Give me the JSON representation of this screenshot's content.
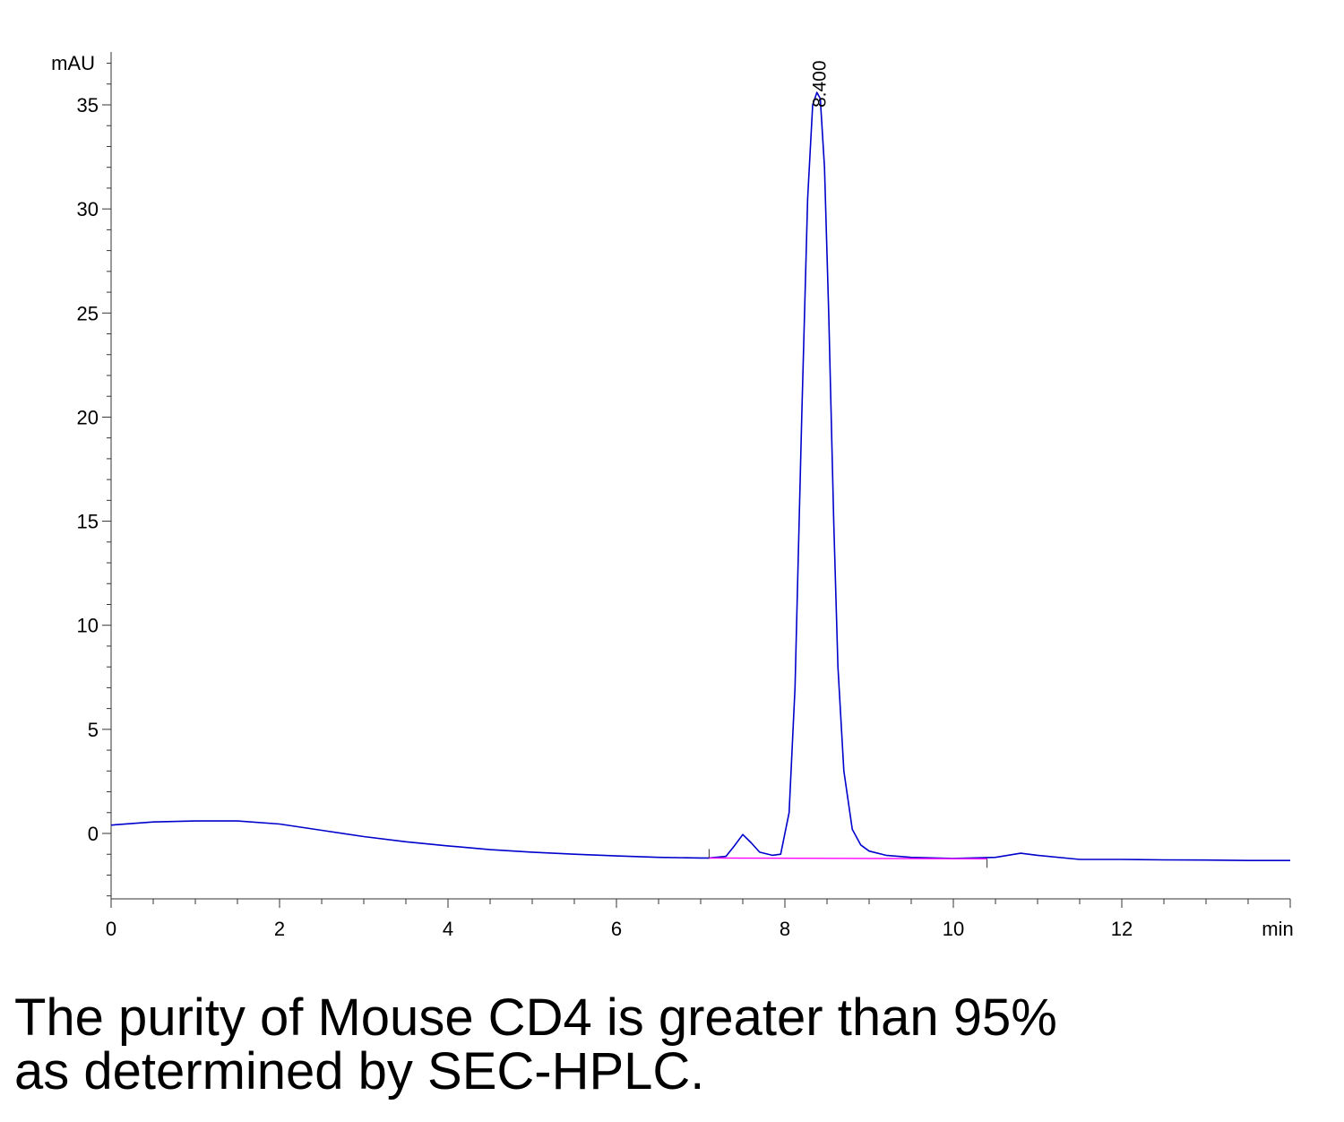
{
  "chart_data": {
    "type": "line",
    "title": "",
    "xlabel": "min",
    "ylabel": "mAU",
    "xlim": [
      0,
      14
    ],
    "ylim": [
      -3.1,
      37.5
    ],
    "x_ticks": [
      "0",
      "2",
      "4",
      "6",
      "8",
      "10",
      "12"
    ],
    "x_tick_values": [
      0,
      2,
      4,
      6,
      8,
      10,
      12
    ],
    "y_ticks": [
      "0",
      "5",
      "10",
      "15",
      "20",
      "25",
      "30",
      "35"
    ],
    "y_tick_values": [
      0,
      5,
      10,
      15,
      20,
      25,
      30,
      35
    ],
    "peak_annotation": {
      "label": "8.400",
      "x": 8.4,
      "y": 35.8
    },
    "series": [
      {
        "color": "#0000cc",
        "x": [
          0,
          0.5,
          1.0,
          1.5,
          2.0,
          2.5,
          3.0,
          3.5,
          4.0,
          4.5,
          5.0,
          5.5,
          6.0,
          6.5,
          7.0,
          7.1,
          7.3,
          7.4,
          7.5,
          7.6,
          7.7,
          7.85,
          7.95,
          8.05,
          8.12,
          8.2,
          8.27,
          8.33,
          8.38,
          8.42,
          8.47,
          8.52,
          8.58,
          8.63,
          8.7,
          8.8,
          8.9,
          9.0,
          9.2,
          9.5,
          10.0,
          10.5,
          10.8,
          11.0,
          11.5,
          12.0,
          12.5,
          13.0,
          13.5,
          14.0
        ],
        "y": [
          0.4,
          0.55,
          0.6,
          0.6,
          0.45,
          0.15,
          -0.15,
          -0.4,
          -0.6,
          -0.78,
          -0.9,
          -1.0,
          -1.08,
          -1.15,
          -1.18,
          -1.18,
          -1.1,
          -0.6,
          -0.05,
          -0.45,
          -0.9,
          -1.05,
          -1.0,
          1.0,
          7.0,
          20.0,
          30.5,
          35.0,
          35.6,
          35.3,
          32.0,
          25.0,
          15.0,
          8.0,
          3.0,
          0.2,
          -0.55,
          -0.85,
          -1.05,
          -1.15,
          -1.2,
          -1.15,
          -0.95,
          -1.05,
          -1.25,
          -1.25,
          -1.27,
          -1.28,
          -1.3,
          -1.3
        ]
      },
      {
        "color": "#ff00ff",
        "x": [
          7.1,
          10.4
        ],
        "y": [
          -1.18,
          -1.22
        ]
      }
    ],
    "grid": false,
    "legend": "none"
  },
  "caption": {
    "line1": "The purity of Mouse CD4 is greater than 95%",
    "line2": "as determined by SEC-HPLC."
  }
}
